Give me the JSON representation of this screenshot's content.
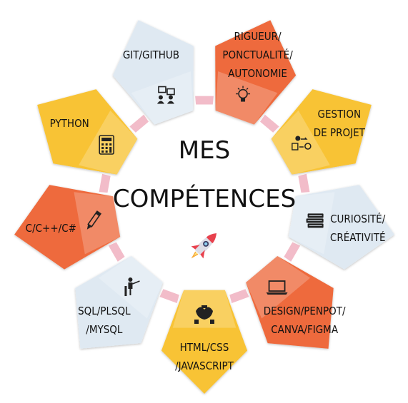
{
  "title": {
    "line1": "MES",
    "line2": "COMPÉTENCES"
  },
  "center_icon": "rocket-icon",
  "segments": [
    {
      "id": "git",
      "lines": [
        "GIT/GITHUB"
      ],
      "icon": "presentation-icon",
      "color": "#dfe9f2"
    },
    {
      "id": "rigueur",
      "lines": [
        "RIGUEUR/",
        "PONCTUALITÉ/",
        "AUTONOMIE"
      ],
      "icon": "lightbulb-icon",
      "color": "#ee6a3c"
    },
    {
      "id": "gestion",
      "lines": [
        "GESTION",
        "DE PROJET"
      ],
      "icon": "workflow-icon",
      "color": "#f8c334"
    },
    {
      "id": "curiosite",
      "lines": [
        "CURIOSITÉ/",
        "CRÉATIVITÉ"
      ],
      "icon": "books-icon",
      "color": "#dfe9f2"
    },
    {
      "id": "design",
      "lines": [
        "DESIGN/PENPOT/",
        "CANVA/FIGMA"
      ],
      "icon": "laptop-icon",
      "color": "#ee6a3c"
    },
    {
      "id": "html",
      "lines": [
        "HTML/CSS",
        "/JAVASCRIPT"
      ],
      "icon": "teamwork-icon",
      "color": "#f8c334"
    },
    {
      "id": "sql",
      "lines": [
        "SQL/PLSQL",
        "/MYSQL"
      ],
      "icon": "presenter-icon",
      "color": "#dfe9f2"
    },
    {
      "id": "c",
      "lines": [
        "C/C++/C#"
      ],
      "icon": "pencil-icon",
      "color": "#ee6a3c"
    },
    {
      "id": "python",
      "lines": [
        "PYTHON"
      ],
      "icon": "calculator-icon",
      "color": "#f8c334"
    }
  ]
}
